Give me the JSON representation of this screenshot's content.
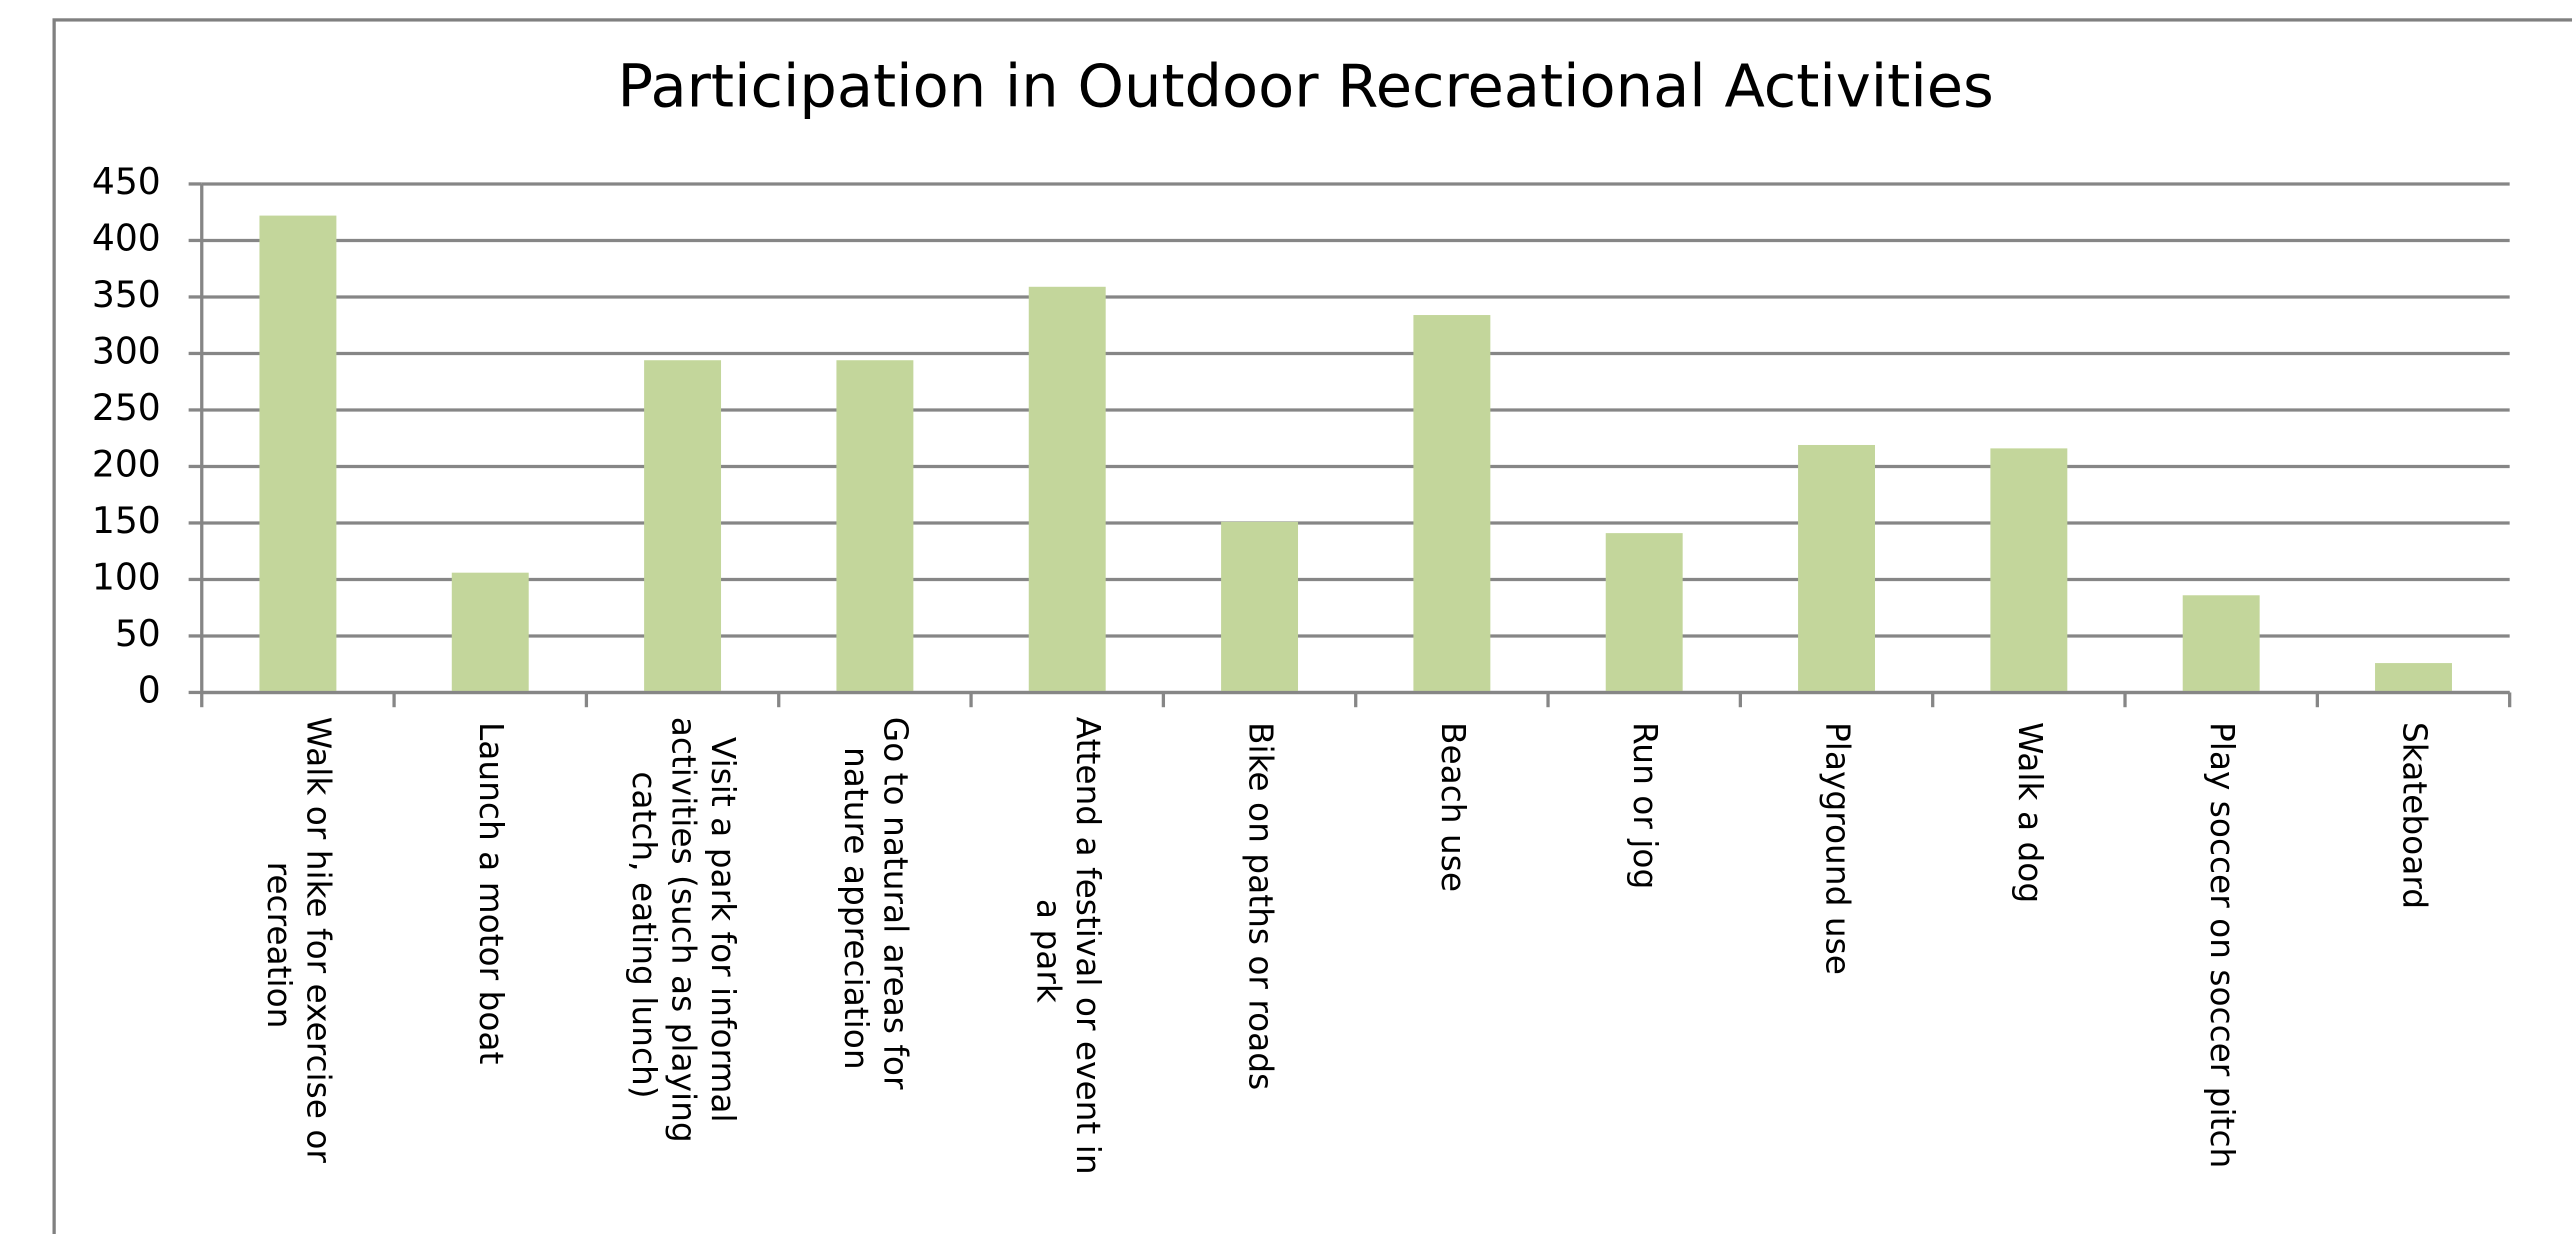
{
  "chart_data": {
    "type": "bar",
    "title": "Participation in Outdoor Recreational Activities",
    "categories": [
      "Walk or hike for exercise or recreation",
      "Launch a motor boat",
      "Visit a park for informal activities (such as playing catch, eating lunch)",
      "Go to natural areas for nature appreciation",
      "Attend a festival or event in a park",
      "Bike on paths or roads",
      "Beach use",
      "Run or jog",
      "Playground use",
      "Walk a dog",
      "Play soccer on soccer pitch",
      "Skateboard"
    ],
    "values": [
      422,
      106,
      294,
      294,
      359,
      151,
      334,
      141,
      219,
      216,
      86,
      26
    ],
    "color": "#c3d69b",
    "ylim": [
      0,
      450
    ],
    "yticks": [
      0,
      50,
      100,
      150,
      200,
      250,
      300,
      350,
      400,
      450
    ],
    "grid": true
  }
}
